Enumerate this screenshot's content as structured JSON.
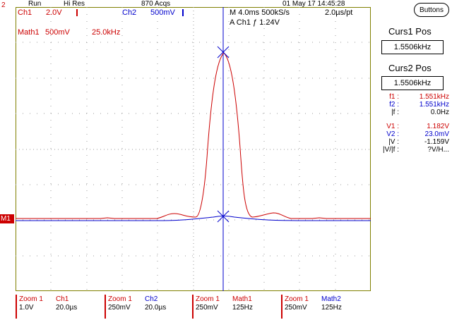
{
  "status": {
    "trigger_marker": "2",
    "run": "Run",
    "mode": "Hi Res",
    "acqs": "870 Acqs",
    "datetime": "01 May 17 14:45:28"
  },
  "channels": {
    "ch1_label": "Ch1",
    "ch1_scale": "2.0V",
    "ch2_label": "Ch2",
    "ch2_scale": "500mV",
    "math1_label": "Math1",
    "math1_scale": "500mV",
    "math1_freq": "25.0kHz"
  },
  "timebase": {
    "line1": "M 4.0ms 500kS/s",
    "rate": "2.0µs/pt",
    "trigger_line": "A  Ch1  ƒ  1.24V"
  },
  "right_panel": {
    "buttons_label": "Buttons",
    "curs1_title": "Curs1 Pos",
    "curs1_value": "1.5506kHz",
    "curs2_title": "Curs2 Pos",
    "curs2_value": "1.5506kHz",
    "measurements": [
      {
        "label": "f1 :",
        "value": "1.551kHz",
        "color": "#cc0000"
      },
      {
        "label": "f2 :",
        "value": "1.551kHz",
        "color": "#0000cc"
      },
      {
        "label": "|f :",
        "value": "0.0Hz",
        "color": "#000000"
      },
      {
        "label": "V1 :",
        "value": "1.182V",
        "color": "#cc0000"
      },
      {
        "label": "V2 :",
        "value": "23.0mV",
        "color": "#0000cc"
      },
      {
        "label": "|V :",
        "value": "-1.159V",
        "color": "#000000"
      },
      {
        "label": "|V/|f :",
        "value": "?V/H...",
        "color": "#000000"
      }
    ]
  },
  "marker": {
    "m1": "M1"
  },
  "bottom": [
    {
      "l1": "Zoom 1",
      "l2": "1.0V",
      "r1": "Ch1",
      "r2": "20.0µs",
      "rcolor": "#cc0000"
    },
    {
      "l1": "Zoom 1",
      "l2": "250mV",
      "r1": "Ch2",
      "r2": "20.0µs",
      "rcolor": "#0000cc"
    },
    {
      "l1": "Zoom 1",
      "l2": "250mV",
      "r1": "Math1",
      "r2": "125Hz",
      "rcolor": "#cc0000"
    },
    {
      "l1": "Zoom 1",
      "l2": "250mV",
      "r1": "Math2",
      "r2": "125Hz",
      "rcolor": "#0000cc"
    }
  ],
  "colors": {
    "ch1": "#cc0000",
    "ch2": "#0000cc",
    "graticule": "#808000",
    "grid": "#9b9b9b"
  }
}
